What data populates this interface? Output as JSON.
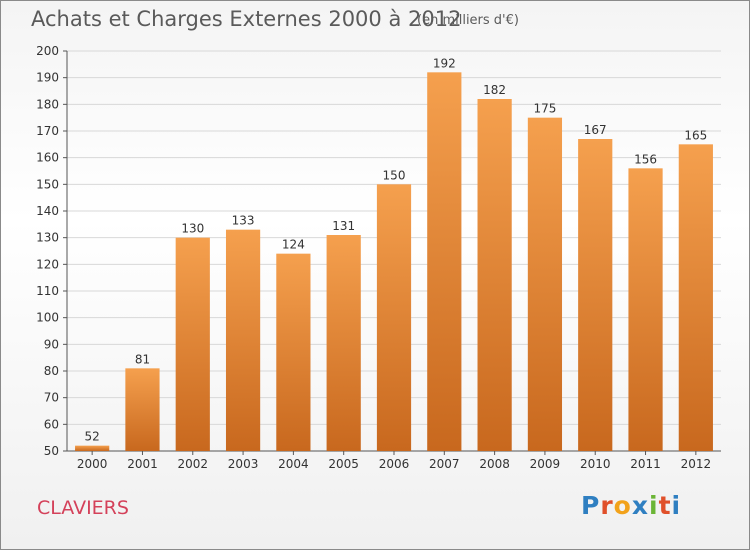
{
  "header": {
    "title": "Achats et Charges Externes 2000 à 2012",
    "unit": "(en milliers d'€)"
  },
  "footer": {
    "commune": "CLAVIERS",
    "logo_letters": [
      "P",
      "r",
      "o",
      "x",
      "i",
      "t",
      "i"
    ],
    "logo_colors": [
      "#2f7fc1",
      "#e0502a",
      "#f2a21b",
      "#2f7fc1",
      "#6bb536",
      "#e0502a",
      "#2f7fc1"
    ]
  },
  "colors": {
    "bar_top": "#f5a04e",
    "bar_bottom": "#c8681e",
    "grid": "#d8d8d8",
    "title": "#5a5a5a",
    "commune": "#d4415a"
  },
  "chart_data": {
    "type": "bar",
    "title": "Achats et Charges Externes 2000 à 2012",
    "xlabel": "",
    "ylabel": "",
    "categories": [
      "2000",
      "2001",
      "2002",
      "2003",
      "2004",
      "2005",
      "2006",
      "2007",
      "2008",
      "2009",
      "2010",
      "2011",
      "2012"
    ],
    "values": [
      52,
      81,
      130,
      133,
      124,
      131,
      150,
      192,
      182,
      175,
      167,
      156,
      165
    ],
    "ylim": [
      50,
      200
    ],
    "yticks": [
      50,
      60,
      70,
      80,
      90,
      100,
      110,
      120,
      130,
      140,
      150,
      160,
      170,
      180,
      190,
      200
    ],
    "grid": true
  }
}
